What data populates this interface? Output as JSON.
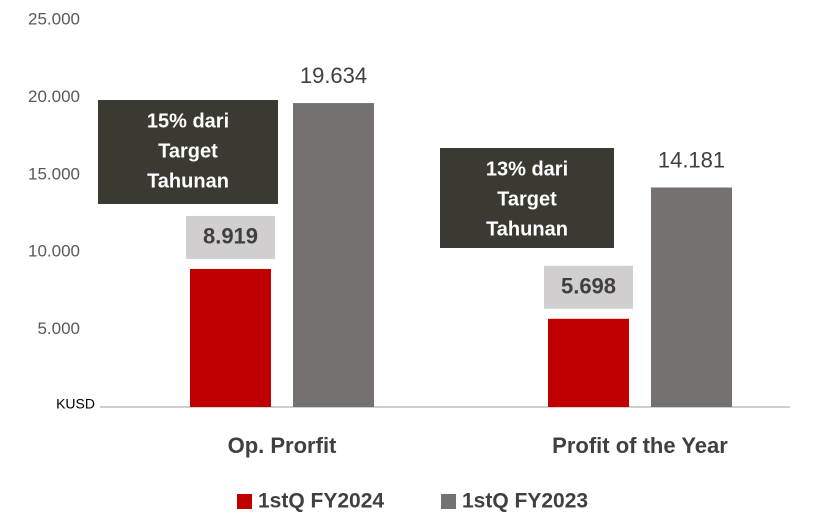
{
  "chart_data": {
    "type": "bar",
    "y_label": "KUSD",
    "categories": [
      "Op. Prorfit",
      "Profit of the Year"
    ],
    "series": [
      {
        "name": "1stQ FY2024",
        "color": "#c00000",
        "values": [
          8919,
          5698
        ],
        "value_labels": [
          "8.919",
          "5.698"
        ]
      },
      {
        "name": "1stQ FY2023",
        "color": "#767171",
        "values": [
          19634,
          14181
        ],
        "value_labels": [
          "19.634",
          "14.181"
        ]
      }
    ],
    "ylim": [
      0,
      25000
    ],
    "yticks": [
      {
        "value": 5000,
        "label": "5.000"
      },
      {
        "value": 10000,
        "label": "10.000"
      },
      {
        "value": 15000,
        "label": "15.000"
      },
      {
        "value": 20000,
        "label": "20.000"
      },
      {
        "value": 25000,
        "label": "25.000"
      }
    ],
    "annotations": [
      {
        "lines": [
          "15% dari",
          "Target",
          "Tahunan"
        ]
      },
      {
        "lines": [
          "13% dari",
          "Target",
          "Tahunan"
        ]
      }
    ],
    "legend": "bottom"
  }
}
